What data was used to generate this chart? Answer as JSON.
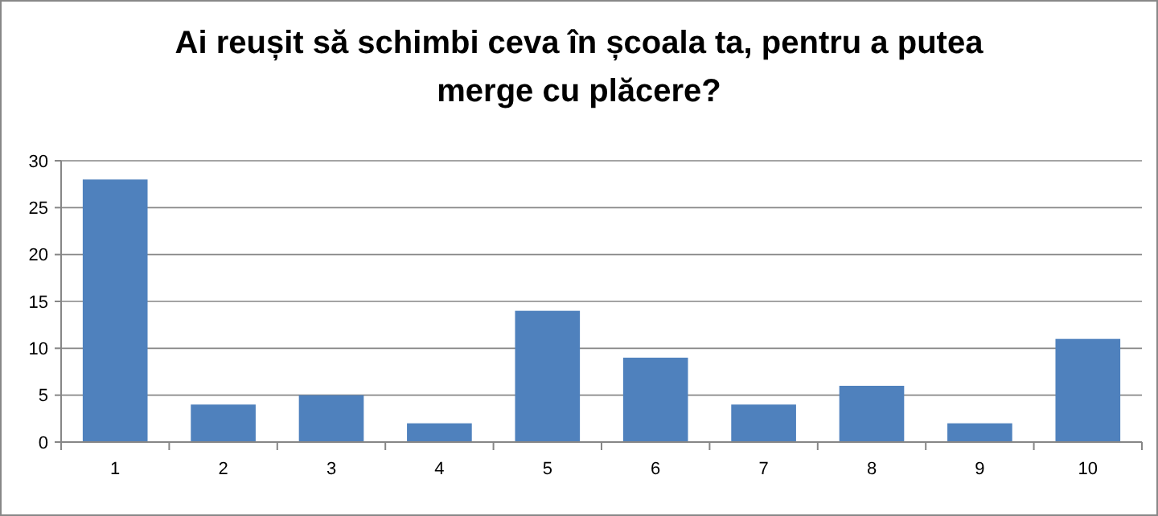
{
  "chart_data": {
    "type": "bar",
    "title": "Ai reușit să schimbi ceva în școala ta, pentru a putea merge cu plăcere?",
    "categories": [
      "1",
      "2",
      "3",
      "4",
      "5",
      "6",
      "7",
      "8",
      "9",
      "10"
    ],
    "values": [
      28,
      4,
      5,
      2,
      14,
      9,
      4,
      6,
      2,
      11
    ],
    "color": "#4f81bd",
    "ylim": [
      0,
      30
    ],
    "yticks": [
      0,
      5,
      10,
      15,
      20,
      25,
      30
    ],
    "grid": "y"
  }
}
